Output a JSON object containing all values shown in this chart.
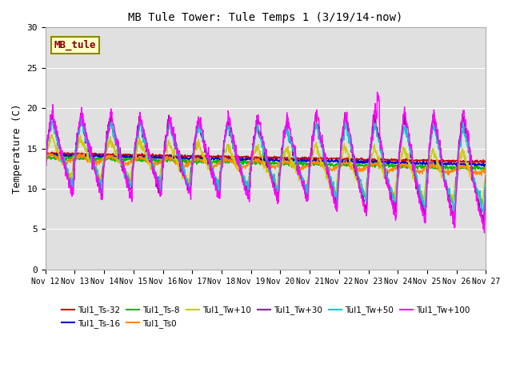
{
  "title": "MB Tule Tower: Tule Temps 1 (3/19/14-now)",
  "ylabel": "Temperature (C)",
  "ylim": [
    0,
    30
  ],
  "yticks": [
    0,
    5,
    10,
    15,
    20,
    25,
    30
  ],
  "xtick_labels": [
    "Nov 12",
    "Nov 13",
    "Nov 14",
    "Nov 15",
    "Nov 16",
    "Nov 17",
    "Nov 18",
    "Nov 19",
    "Nov 20",
    "Nov 21",
    "Nov 22",
    "Nov 23",
    "Nov 24",
    "Nov 25",
    "Nov 26",
    "Nov 27"
  ],
  "background_color": "#e0e0e0",
  "fig_background": "#ffffff",
  "series_order": [
    "Tul1_Ts-32",
    "Tul1_Ts-16",
    "Tul1_Ts-8",
    "Tul1_Ts0",
    "Tul1_Tw+10",
    "Tul1_Tw+30",
    "Tul1_Tw+50",
    "Tul1_Tw+100"
  ],
  "series": {
    "Tul1_Ts-32": {
      "color": "#cc0000",
      "lw": 1.0
    },
    "Tul1_Ts-16": {
      "color": "#0000cc",
      "lw": 1.0
    },
    "Tul1_Ts-8": {
      "color": "#00bb00",
      "lw": 1.0
    },
    "Tul1_Ts0": {
      "color": "#ff8800",
      "lw": 1.0
    },
    "Tul1_Tw+10": {
      "color": "#cccc00",
      "lw": 1.0
    },
    "Tul1_Tw+30": {
      "color": "#aa00aa",
      "lw": 1.0
    },
    "Tul1_Tw+50": {
      "color": "#00cccc",
      "lw": 1.0
    },
    "Tul1_Tw+100": {
      "color": "#ff00ff",
      "lw": 1.0
    }
  },
  "legend_order": [
    "Tul1_Ts-32",
    "Tul1_Ts-16",
    "Tul1_Ts-8",
    "Tul1_Ts0",
    "Tul1_Tw+10",
    "Tul1_Tw+30",
    "Tul1_Tw+50",
    "Tul1_Tw+100"
  ],
  "mb_tule_box": {
    "text": "MB_tule",
    "facecolor": "#ffffcc",
    "edgecolor": "#888800",
    "textcolor": "#880000",
    "fontsize": 9,
    "fontweight": "bold"
  }
}
